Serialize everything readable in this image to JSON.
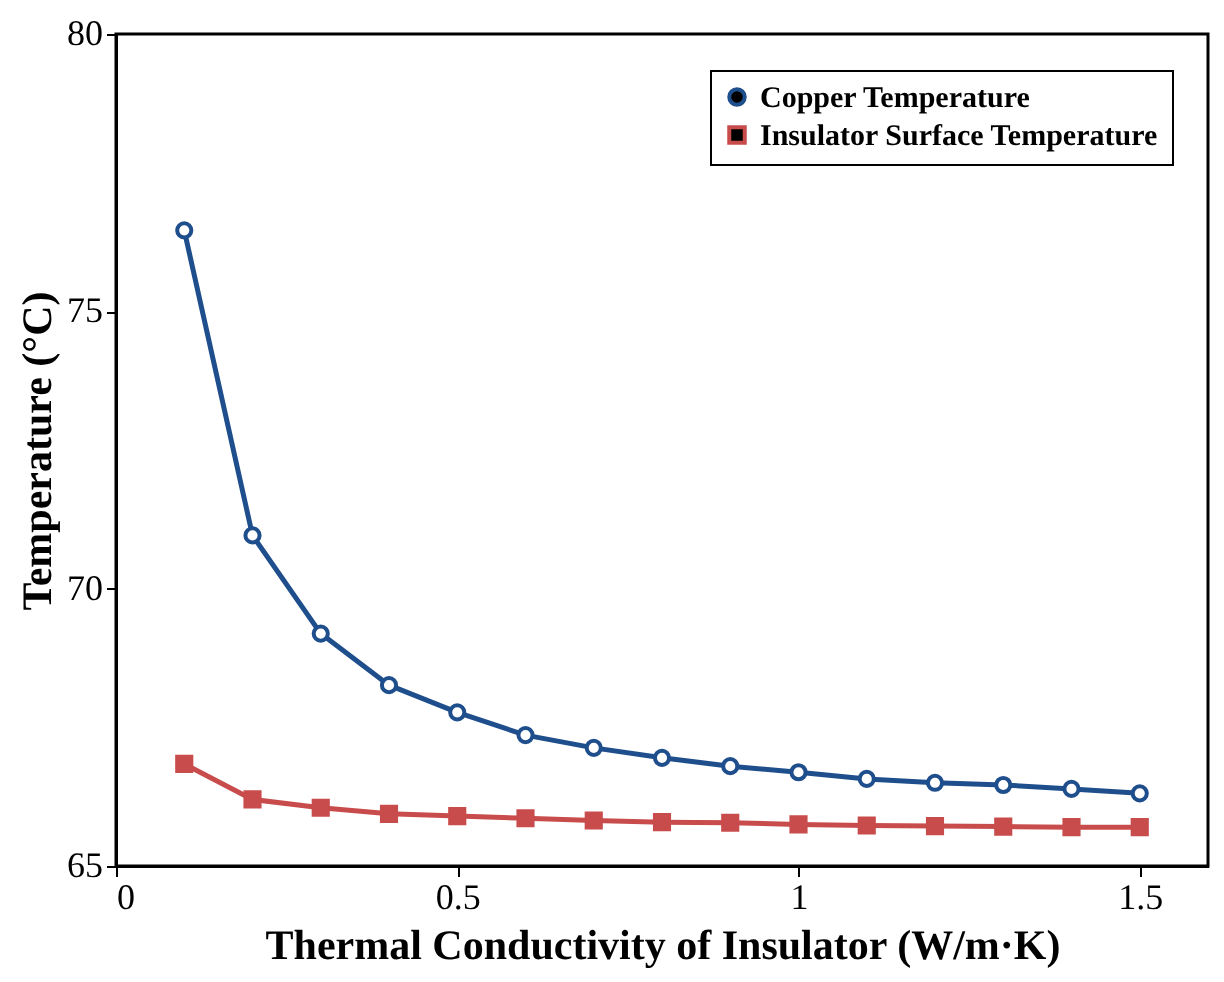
{
  "chart_data": {
    "type": "line",
    "xlabel": "Thermal Conductivity of Insulator (W/m·K)",
    "ylabel": "Temperature (°C)",
    "x": [
      0.1,
      0.2,
      0.3,
      0.4,
      0.5,
      0.6,
      0.7,
      0.8,
      0.9,
      1.0,
      1.1,
      1.2,
      1.3,
      1.4,
      1.5
    ],
    "series": [
      {
        "name": "Copper Temperature",
        "color": "#1f4e8c",
        "marker": "circle",
        "values": [
          76.46,
          70.96,
          69.19,
          68.26,
          67.77,
          67.36,
          67.13,
          66.95,
          66.8,
          66.69,
          66.57,
          66.5,
          66.46,
          66.39,
          66.31
        ]
      },
      {
        "name": "Insulator Surface Temperature",
        "color": "#c94c4c",
        "marker": "square",
        "values": [
          66.84,
          66.2,
          66.05,
          65.94,
          65.9,
          65.86,
          65.82,
          65.79,
          65.78,
          65.75,
          65.73,
          65.72,
          65.71,
          65.7,
          65.7
        ]
      }
    ],
    "xlim": [
      0,
      1.6
    ],
    "ylim": [
      65,
      80
    ],
    "xticks": [
      0,
      0.5,
      {
        "value": 1,
        "label": "1"
      },
      1.5
    ],
    "yticks": [
      65,
      70,
      75,
      80
    ],
    "grid": false,
    "legend": "top right",
    "line_style": "solid"
  }
}
